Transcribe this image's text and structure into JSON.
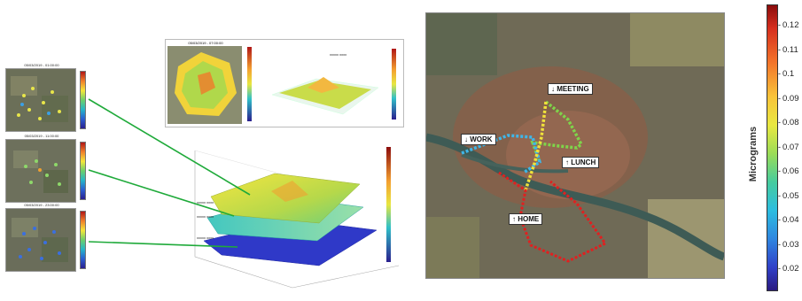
{
  "thumbnails": [
    {
      "title": "05/03/2019 - 01:00:00"
    },
    {
      "title": "05/03/2019 - 11:00:00"
    },
    {
      "title": "05/03/2019 - 23:00:00"
    }
  ],
  "top_panel": {
    "title": "05/03/2019 - 07:00:00",
    "inner_title": "xxxxx xxxx"
  },
  "main_surface": {
    "layer_labels": [
      "xxxxx xxxx",
      "xxxxx xxxx",
      "xxxxx xxxx"
    ]
  },
  "map": {
    "labels": {
      "meeting": "↓ MEETING",
      "work": "↓ WORK",
      "lunch": "↑ LUNCH",
      "home": "↑ HOME"
    }
  },
  "colorbar": {
    "label": "Micrograms",
    "ticks": [
      "0.12",
      "0.11",
      "0.1",
      "0.09",
      "0.08",
      "0.07",
      "0.06",
      "0.05",
      "0.04",
      "0.03",
      "0.02"
    ]
  },
  "colors": {
    "connector": "#1faa3a",
    "route_meeting": "#7fd44a",
    "route_work": "#3fb6e8",
    "route_lunch": "#f0e23a",
    "route_home": "#e02020"
  }
}
